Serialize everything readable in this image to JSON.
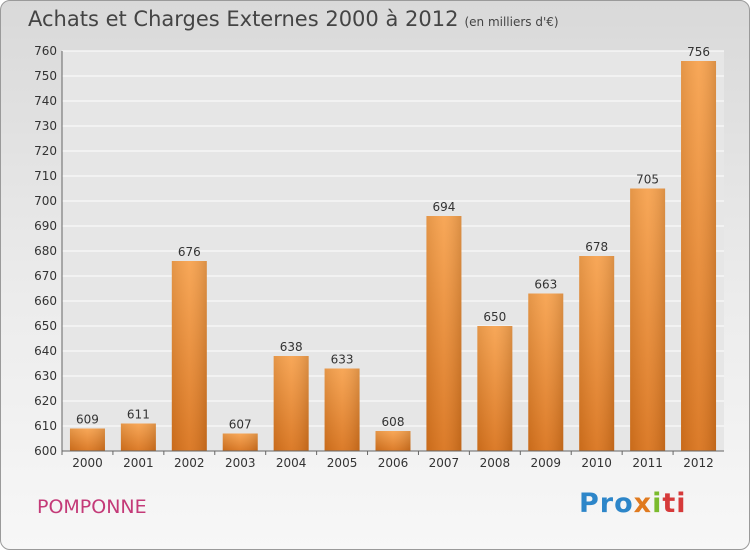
{
  "title": "Achats et Charges Externes 2000 à 2012",
  "title_unit": "(en milliers d'€)",
  "commune": "POMPONNE",
  "logo": {
    "p1": "Pro",
    "p2": "x",
    "p3": "i",
    "p4": "ti"
  },
  "colors": {
    "bar_top": "#f7a24e",
    "bar_bottom": "#d9731c",
    "grid": "#ffffff",
    "commune": "#c43a78"
  },
  "chart_data": {
    "type": "bar",
    "categories": [
      "2000",
      "2001",
      "2002",
      "2003",
      "2004",
      "2005",
      "2006",
      "2007",
      "2008",
      "2009",
      "2010",
      "2011",
      "2012"
    ],
    "values": [
      609,
      611,
      676,
      607,
      638,
      633,
      608,
      694,
      650,
      663,
      678,
      705,
      756
    ],
    "ylim": [
      600,
      760
    ],
    "yticks": [
      600,
      610,
      620,
      630,
      640,
      650,
      660,
      670,
      680,
      690,
      700,
      710,
      720,
      730,
      740,
      750,
      760
    ],
    "grid": true,
    "legend": "none"
  }
}
